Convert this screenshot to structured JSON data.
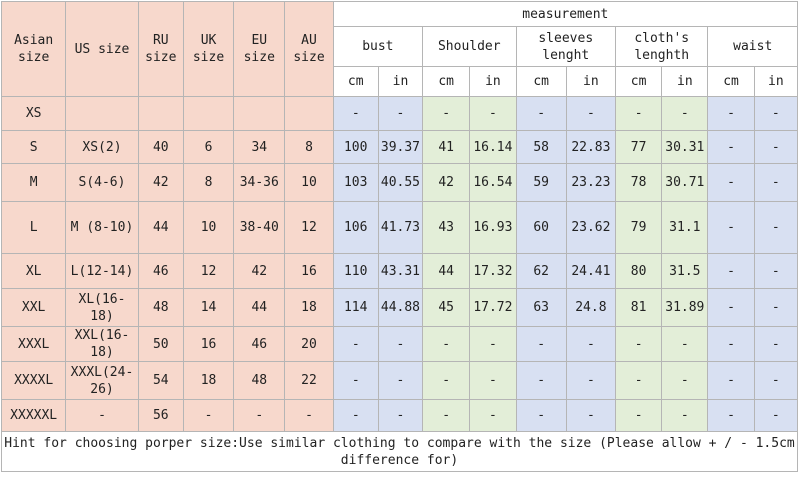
{
  "headers": {
    "asian_size": "Asian size",
    "us_size": "US size",
    "ru_size": "RU size",
    "uk_size": "UK size",
    "eu_size": "EU size",
    "au_size": "AU size",
    "measurement": "measurement",
    "bust": "bust",
    "shoulder": "Shoulder",
    "sleeves": "sleeves lenght",
    "cloths": "cloth's lenghth",
    "waist": "waist",
    "cm": "cm",
    "in": "in"
  },
  "rows": [
    [
      "XS",
      "",
      "",
      "",
      "",
      "",
      "-",
      "-",
      "-",
      "-",
      "-",
      "-",
      "-",
      "-",
      "-",
      "-"
    ],
    [
      "S",
      "XS(2)",
      "40",
      "6",
      "34",
      "8",
      "100",
      "39.37",
      "41",
      "16.14",
      "58",
      "22.83",
      "77",
      "30.31",
      "-",
      "-"
    ],
    [
      "M",
      "S(4-6)",
      "42",
      "8",
      "34-36",
      "10",
      "103",
      "40.55",
      "42",
      "16.54",
      "59",
      "23.23",
      "78",
      "30.71",
      "-",
      "-"
    ],
    [
      "L",
      "M (8-10)",
      "44",
      "10",
      "38-40",
      "12",
      "106",
      "41.73",
      "43",
      "16.93",
      "60",
      "23.62",
      "79",
      "31.1",
      "-",
      "-"
    ],
    [
      "XL",
      "L(12-14)",
      "46",
      "12",
      "42",
      "16",
      "110",
      "43.31",
      "44",
      "17.32",
      "62",
      "24.41",
      "80",
      "31.5",
      "-",
      "-"
    ],
    [
      "XXL",
      "XL(16-18)",
      "48",
      "14",
      "44",
      "18",
      "114",
      "44.88",
      "45",
      "17.72",
      "63",
      "24.8",
      "81",
      "31.89",
      "-",
      "-"
    ],
    [
      "XXXL",
      "XXL(16-18)",
      "50",
      "16",
      "46",
      "20",
      "-",
      "-",
      "-",
      "-",
      "-",
      "-",
      "-",
      "-",
      "-",
      "-"
    ],
    [
      "XXXXL",
      "XXXL(24-26)",
      "54",
      "18",
      "48",
      "22",
      "-",
      "-",
      "-",
      "-",
      "-",
      "-",
      "-",
      "-",
      "-",
      "-"
    ],
    [
      "XXXXXL",
      "-",
      "56",
      "-",
      "-",
      "-",
      "-",
      "-",
      "-",
      "-",
      "-",
      "-",
      "-",
      "-",
      "-",
      "-"
    ]
  ],
  "footer": "Hint for choosing porper size:Use similar clothing to compare with the size (Please allow + / - 1.5cm difference for)",
  "colors": {
    "size_block": "#f7d8cc",
    "measurement_green": "#e3eed8",
    "measurement_blue": "#d8e0f2",
    "border": "#b5b5b5"
  }
}
